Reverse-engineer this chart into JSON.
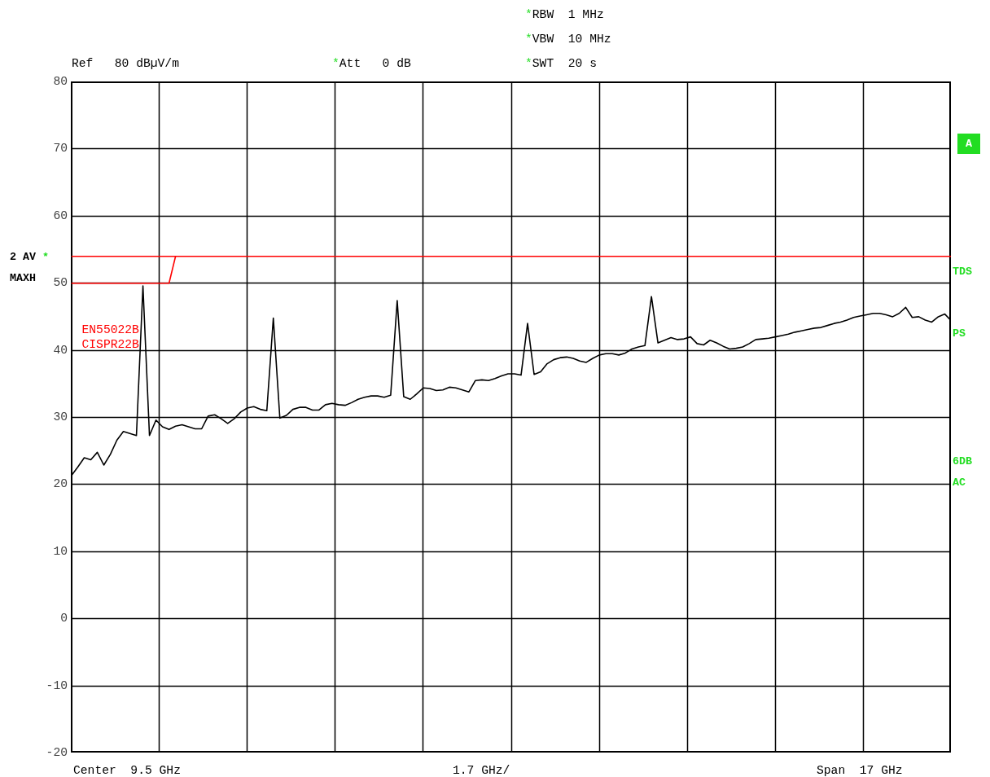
{
  "chart_data": {
    "type": "line",
    "ylim": [
      -20,
      80
    ],
    "categories": [
      null,
      null,
      null,
      null,
      null,
      null,
      null,
      null,
      null,
      null,
      null,
      null,
      null,
      null,
      null,
      null,
      null,
      null,
      null,
      null,
      null,
      null,
      null,
      null,
      null,
      null,
      null,
      null,
      null,
      null,
      null,
      null,
      null,
      null,
      null,
      null,
      null,
      null,
      null,
      null,
      null,
      null,
      null,
      null,
      null,
      null,
      null,
      null,
      null,
      null,
      null,
      null,
      null,
      null,
      null,
      null,
      null,
      null,
      null,
      null,
      null,
      null,
      null,
      null,
      null,
      null,
      null,
      null,
      null,
      null,
      null,
      null,
      null,
      null,
      null,
      null,
      null,
      null,
      null,
      null,
      null,
      null,
      null,
      null,
      null,
      null,
      null,
      null,
      null,
      null,
      null,
      null,
      null,
      null,
      null,
      null,
      null,
      null,
      null,
      null,
      null,
      null,
      null,
      null,
      null,
      null,
      null,
      null,
      null,
      null,
      null,
      null,
      null,
      null,
      null,
      null,
      null,
      null,
      null,
      null,
      null,
      null,
      null,
      null,
      null,
      null,
      null,
      null,
      null,
      null,
      null,
      null,
      null,
      null,
      null,
      null
    ],
    "yticks": [
      -20,
      -10,
      0,
      10,
      20,
      30,
      40,
      50,
      60,
      70,
      80
    ],
    "grid": true,
    "tick_labels": "y",
    "line_style": "solid",
    "series": [
      {
        "color": "#000000",
        "values": [
          21.3,
          22.6,
          24.0,
          23.7,
          24.8,
          22.9,
          24.5,
          26.6,
          27.9,
          27.6,
          27.3,
          49.6,
          27.3,
          29.6,
          28.6,
          28.2,
          28.7,
          28.9,
          28.6,
          28.3,
          28.3,
          30.2,
          30.4,
          29.8,
          29.1,
          29.8,
          30.8,
          31.4,
          31.6,
          31.2,
          31.0,
          44.8,
          29.9,
          30.3,
          31.2,
          31.5,
          31.5,
          31.1,
          31.1,
          31.9,
          32.1,
          31.9,
          31.8,
          32.2,
          32.7,
          33.0,
          33.2,
          33.2,
          33.0,
          33.3,
          47.4,
          33.1,
          32.7,
          33.5,
          34.4,
          34.3,
          34.0,
          34.1,
          34.5,
          34.4,
          34.1,
          33.8,
          35.5,
          35.6,
          35.5,
          35.8,
          36.2,
          36.5,
          36.5,
          36.3,
          44.0,
          36.4,
          36.8,
          38.0,
          38.6,
          38.9,
          39.0,
          38.8,
          38.4,
          38.2,
          38.8,
          39.3,
          39.5,
          39.5,
          39.3,
          39.6,
          40.2,
          40.5,
          40.7,
          48.0,
          41.1,
          41.5,
          41.9,
          41.6,
          41.7,
          42.0,
          41.0,
          40.8,
          41.5,
          41.1,
          40.6,
          40.2,
          40.3,
          40.5,
          41.0,
          41.6,
          41.7,
          41.8,
          42.0,
          42.2,
          42.4,
          42.7,
          42.9,
          43.1,
          43.3,
          43.4,
          43.7,
          44.0,
          44.2,
          44.5,
          44.9,
          45.1,
          45.3,
          45.5,
          45.5,
          45.3,
          45.0,
          45.5,
          46.4,
          44.9,
          45.0,
          44.5,
          44.2,
          45.0,
          45.4,
          44.4
        ]
      },
      {
        "color": "#ff0000",
        "values": [
          54,
          54,
          54,
          54,
          54,
          54,
          54,
          54,
          54,
          54,
          54,
          54,
          54,
          54,
          54,
          54,
          54,
          54,
          54,
          54,
          54,
          54,
          54,
          54,
          54,
          54,
          54,
          54,
          54,
          54,
          54,
          54,
          54,
          54,
          54,
          54,
          54,
          54,
          54,
          54,
          54,
          54,
          54,
          54,
          54,
          54,
          54,
          54,
          54,
          54,
          54,
          54,
          54,
          54,
          54,
          54,
          54,
          54,
          54,
          54,
          54,
          54,
          54,
          54,
          54,
          54,
          54,
          54,
          54,
          54,
          54,
          54,
          54,
          54,
          54,
          54,
          54,
          54,
          54,
          54,
          54,
          54,
          54,
          54,
          54,
          54,
          54,
          54,
          54,
          54,
          54,
          54,
          54,
          54,
          54,
          54,
          54,
          54,
          54,
          54,
          54,
          54,
          54,
          54,
          54,
          54,
          54,
          54,
          54,
          54,
          54,
          54,
          54,
          54,
          54,
          54,
          54,
          54,
          54,
          54,
          54,
          54,
          54,
          54,
          54,
          54,
          54,
          54,
          54,
          54,
          54,
          54,
          54,
          54,
          54,
          54
        ]
      },
      {
        "color": "#ff0000",
        "values": [
          50,
          50,
          50,
          50,
          50,
          50,
          50,
          50,
          50,
          50,
          50,
          50,
          50,
          50,
          50,
          50,
          54,
          null,
          null,
          null,
          null,
          null,
          null,
          null,
          null,
          null,
          null,
          null,
          null,
          null,
          null,
          null,
          null,
          null,
          null,
          null,
          null,
          null,
          null,
          null,
          null,
          null,
          null,
          null,
          null,
          null,
          null,
          null,
          null,
          null,
          null,
          null,
          null,
          null,
          null,
          null,
          null,
          null,
          null,
          null,
          null,
          null,
          null,
          null,
          null,
          null,
          null,
          null,
          null,
          null,
          null,
          null,
          null,
          null,
          null,
          null,
          null,
          null,
          null,
          null,
          null,
          null,
          null,
          null,
          null,
          null,
          null,
          null,
          null,
          null,
          null,
          null,
          null,
          null,
          null,
          null,
          null,
          null,
          null,
          null,
          null,
          null,
          null,
          null,
          null,
          null,
          null,
          null,
          null,
          null,
          null,
          null,
          null,
          null,
          null,
          null,
          null,
          null,
          null,
          null,
          null,
          null,
          null,
          null,
          null,
          null,
          null,
          null,
          null,
          null,
          null,
          null,
          null,
          null,
          null,
          null
        ]
      }
    ],
    "annotations": [
      "Ref   80 dBµV/m",
      "*Att   0 dB",
      "*RBW  1 MHz",
      "*VBW  10 MHz",
      "*SWT  20 s",
      "2 AV *",
      "MAXH",
      "A",
      "TDS",
      "PS",
      "6DB",
      "AC",
      "EN55022B",
      "CISPR22B",
      "Center  9.5 GHz",
      "1.7 GHz/",
      "Span  17 GHz"
    ]
  }
}
